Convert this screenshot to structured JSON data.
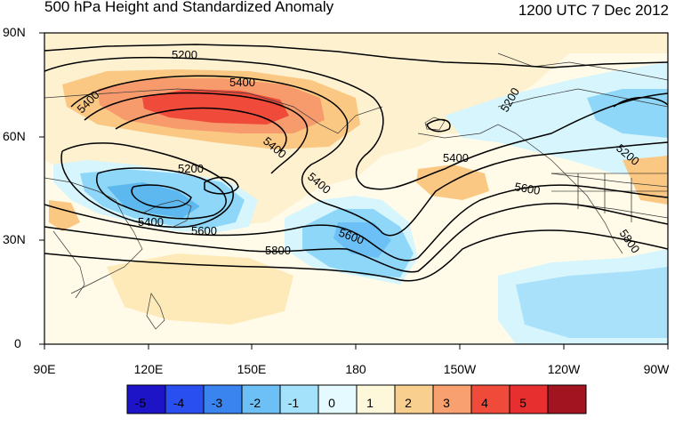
{
  "title": {
    "left": "500 hPa Height and Standardized Anomaly",
    "right": "1200 UTC 7 Dec 2012"
  },
  "axes": {
    "lat_labels": [
      "90N",
      "60N",
      "30N",
      "0"
    ],
    "lon_labels": [
      "90E",
      "120E",
      "150E",
      "180",
      "150W",
      "120W",
      "90W"
    ]
  },
  "contour_labels": [
    "5200",
    "5400",
    "5400",
    "5200",
    "5400",
    "5600",
    "5800",
    "5400",
    "5400",
    "5600",
    "5600",
    "5800",
    "5200",
    "5200"
  ],
  "colorbar": {
    "labels": [
      "-5",
      "-4",
      "-3",
      "-2",
      "-1",
      "0",
      "1",
      "2",
      "3",
      "4",
      "5"
    ],
    "colors": [
      "#1d14c8",
      "#2a4ff0",
      "#3a84f0",
      "#6cc0f5",
      "#a4e2fb",
      "#e4fafe",
      "#fdf8d9",
      "#f9cf8f",
      "#f8a070",
      "#ef4a3a",
      "#e82f2f",
      "#a31421"
    ]
  },
  "colors": {
    "negative_light": "#d6f5fd",
    "negative_medium": "#8fd7f8",
    "negative_strong": "#5cb8ee",
    "positive_light": "#fdf4d6",
    "positive_medium": "#fac883",
    "positive_strong": "#f79a6c",
    "positive_max": "#ef4a3a",
    "background": "#fffbe8",
    "contour": "#000000",
    "coast": "#3a3a3a"
  }
}
